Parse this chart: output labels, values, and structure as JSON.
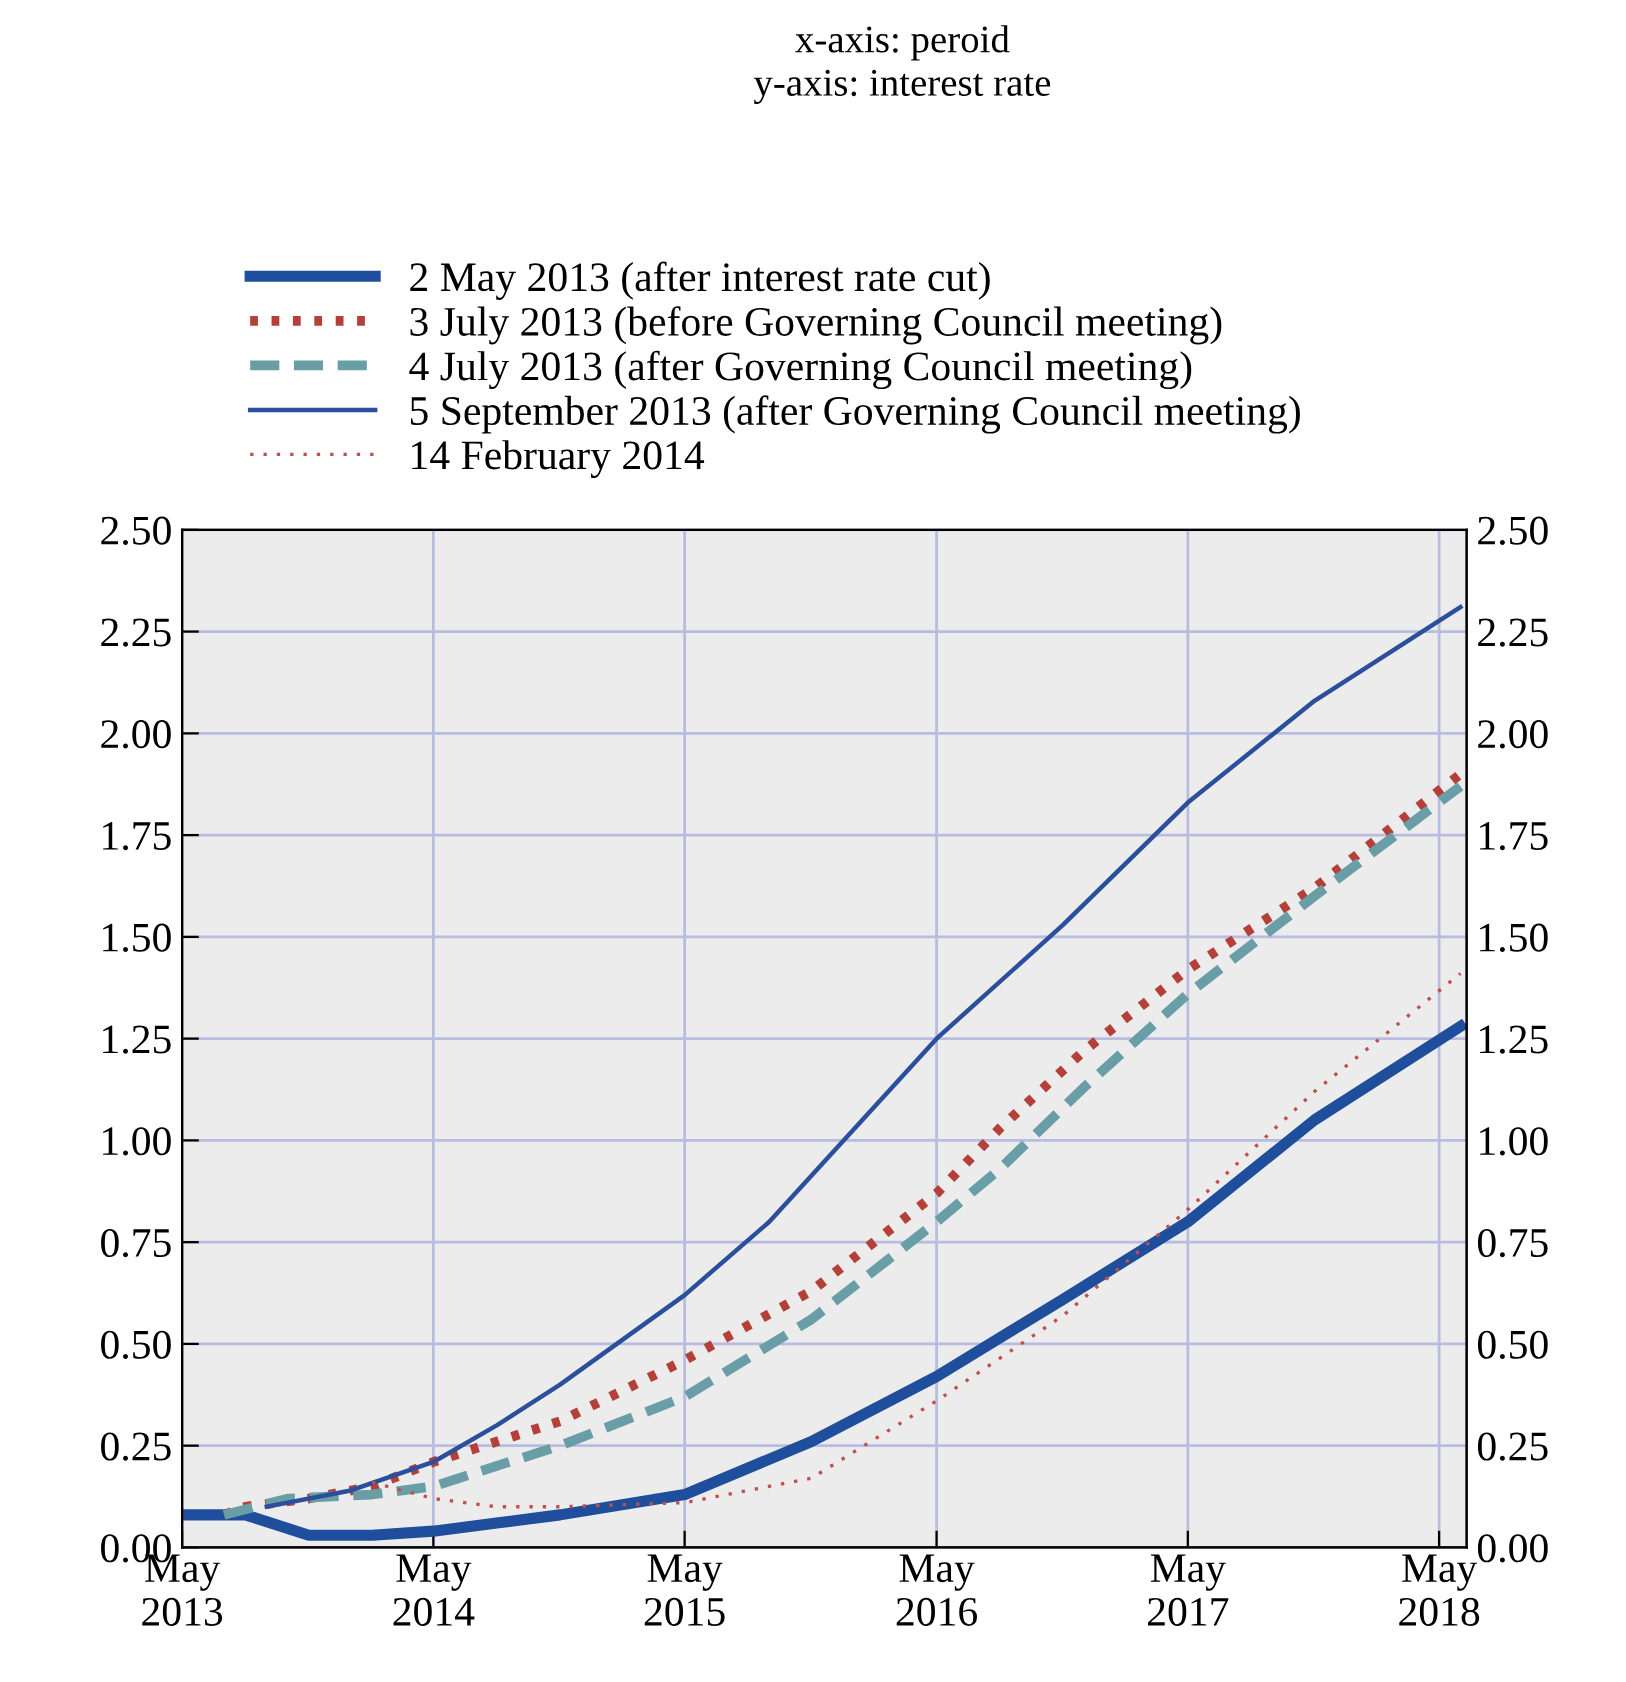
{
  "chart_data": {
    "type": "line",
    "annotations": [
      "x-axis: peroid\ny-axis: interest rate"
    ],
    "xlim": [
      "2013-05-01",
      "2018-06-10"
    ],
    "xticks": [
      {
        "value": "2013-05-01",
        "label": "May\n2013"
      },
      {
        "value": "2014-05-01",
        "label": "May\n2014"
      },
      {
        "value": "2015-05-01",
        "label": "May\n2015"
      },
      {
        "value": "2016-05-01",
        "label": "May\n2016"
      },
      {
        "value": "2017-05-01",
        "label": "May\n2017"
      },
      {
        "value": "2018-05-01",
        "label": "May\n2018"
      }
    ],
    "ylim": [
      0,
      2.5
    ],
    "yticks": [
      {
        "value": 0,
        "label": "0.00"
      },
      {
        "value": 0.25,
        "label": "0.25"
      },
      {
        "value": 0.5,
        "label": "0.50"
      },
      {
        "value": 0.75,
        "label": "0.75"
      },
      {
        "value": 1,
        "label": "1.00"
      },
      {
        "value": 1.25,
        "label": "1.25"
      },
      {
        "value": 1.5,
        "label": "1.50"
      },
      {
        "value": 1.75,
        "label": "1.75"
      },
      {
        "value": 2,
        "label": "2.00"
      },
      {
        "value": 2.25,
        "label": "2.25"
      },
      {
        "value": 2.5,
        "label": "2.50"
      }
    ],
    "y2lim": [
      0,
      2.5
    ],
    "y2ticks": [
      {
        "value": 0,
        "label": "0.00"
      },
      {
        "value": 0.25,
        "label": "0.25"
      },
      {
        "value": 0.5,
        "label": "0.50"
      },
      {
        "value": 0.75,
        "label": "0.75"
      },
      {
        "value": 1,
        "label": "1.00"
      },
      {
        "value": 1.25,
        "label": "1.25"
      },
      {
        "value": 1.5,
        "label": "1.50"
      },
      {
        "value": 1.75,
        "label": "1.75"
      },
      {
        "value": 2,
        "label": "2.00"
      },
      {
        "value": 2.25,
        "label": "2.25"
      },
      {
        "value": 2.5,
        "label": "2.50"
      }
    ],
    "grid": true,
    "legend": "top",
    "marker": "none",
    "series": [
      {
        "name": "2 May 2013 (after interest rate cut)",
        "color": "#1f4e9c",
        "line_style": "solid",
        "x": [
          "2013-05-01",
          "2013-08",
          "2013-11",
          "2014-02",
          "2014-05",
          "2014-08",
          "2014-11",
          "2015-05",
          "2015-11",
          "2016-05",
          "2016-11",
          "2017-05",
          "2017-11",
          "2018-06"
        ],
        "values": [
          0.08,
          0.08,
          0.03,
          0.03,
          0.04,
          0.06,
          0.08,
          0.13,
          0.26,
          0.42,
          0.61,
          0.8,
          1.05,
          1.28
        ]
      },
      {
        "name": "3 July 2013 (before Governing Council meeting)",
        "color": "#b5403a",
        "line_style": "dotted",
        "x": [
          "2013-07",
          "2013-08",
          "2013-11",
          "2014-02",
          "2014-05",
          "2014-11",
          "2015-05",
          "2015-11",
          "2016-05",
          "2016-08",
          "2016-12",
          "2017-05",
          "2017-11",
          "2018-06"
        ],
        "values": [
          0.08,
          0.1,
          0.12,
          0.15,
          0.21,
          0.31,
          0.46,
          0.63,
          0.87,
          1.03,
          1.22,
          1.42,
          1.62,
          1.9
        ]
      },
      {
        "name": "4 July 2013 (after Governing Council meeting)",
        "color": "#6a9ea6",
        "line_style": "dashed",
        "x": [
          "2013-07",
          "2013-10",
          "2014-02",
          "2014-05",
          "2014-11",
          "2015-05",
          "2015-11",
          "2016-05",
          "2016-08",
          "2016-12",
          "2017-05",
          "2017-11",
          "2018-06"
        ],
        "values": [
          0.08,
          0.12,
          0.13,
          0.15,
          0.25,
          0.37,
          0.56,
          0.8,
          0.93,
          1.13,
          1.36,
          1.6,
          1.87
        ]
      },
      {
        "name": "5 September 2013 (after Governing Council meeting)",
        "color": "#2b4f9c",
        "line_style": "solid",
        "x": [
          "2013-09",
          "2014-01",
          "2014-05",
          "2014-08",
          "2014-11",
          "2015-05",
          "2015-09",
          "2016-05",
          "2016-11",
          "2017-05",
          "2017-11",
          "2018-06"
        ],
        "values": [
          0.1,
          0.14,
          0.21,
          0.3,
          0.4,
          0.62,
          0.8,
          1.25,
          1.53,
          1.83,
          2.08,
          2.31
        ]
      },
      {
        "name": "14 February 2014",
        "color": "#c0504d",
        "line_style": "dotted",
        "x": [
          "2014-02",
          "2014-05",
          "2014-08",
          "2014-11",
          "2015-05",
          "2015-11",
          "2016-05",
          "2016-11",
          "2017-05",
          "2017-11",
          "2018-06"
        ],
        "values": [
          0.16,
          0.12,
          0.1,
          0.1,
          0.11,
          0.17,
          0.36,
          0.57,
          0.83,
          1.12,
          1.41
        ]
      }
    ]
  }
}
